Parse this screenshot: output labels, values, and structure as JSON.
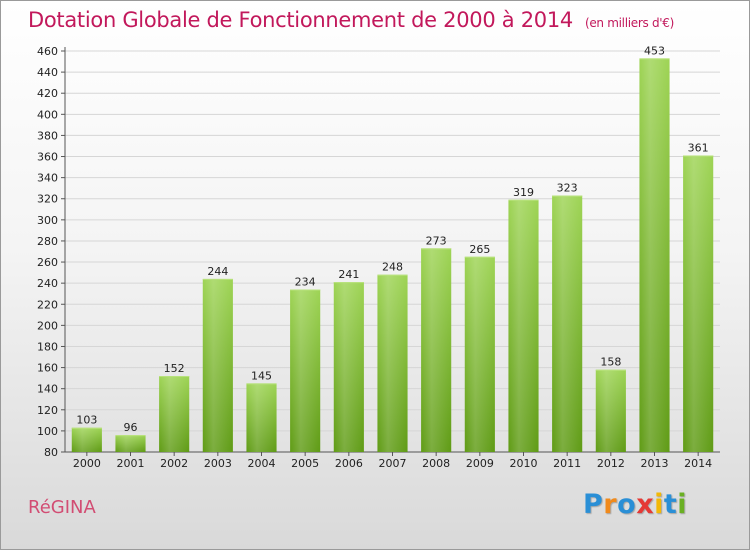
{
  "chart_data": {
    "type": "bar",
    "title": "Dotation Globale de Fonctionnement de 2000 à 2014",
    "subtitle": "(en milliers d'€)",
    "categories": [
      "2000",
      "2001",
      "2002",
      "2003",
      "2004",
      "2005",
      "2006",
      "2007",
      "2008",
      "2009",
      "2010",
      "2011",
      "2012",
      "2013",
      "2014"
    ],
    "values": [
      103,
      96,
      152,
      244,
      145,
      234,
      241,
      248,
      273,
      265,
      319,
      323,
      158,
      453,
      361
    ],
    "ylim": [
      80,
      460
    ],
    "ytick_step": 20,
    "grid": true,
    "bar_color": "#7fc02e",
    "title_color": "#c2185b"
  },
  "commune_name": "RéGINA",
  "logo": {
    "p": "P",
    "r": "r",
    "o": "o",
    "x": "x",
    "i": "i",
    "t": "t",
    "i2": "i"
  }
}
